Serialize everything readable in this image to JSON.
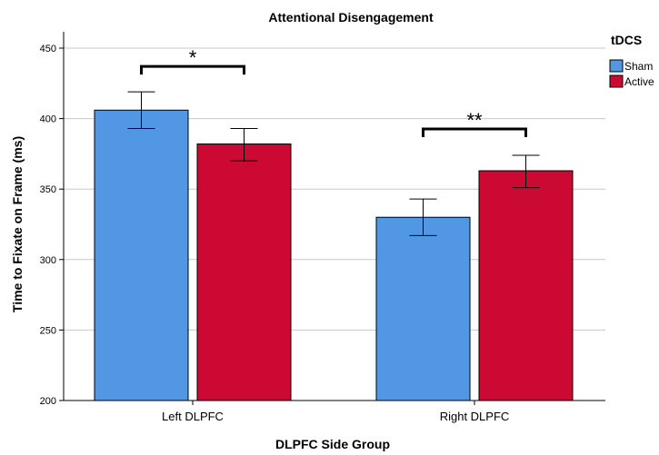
{
  "chart_data": {
    "type": "bar",
    "title": "Attentional Disengagement",
    "xlabel": "DLPFC Side Group",
    "ylabel": "Time to Fixate on Frame (ms)",
    "ylim": [
      200,
      460
    ],
    "yticks": [
      200,
      250,
      300,
      350,
      400,
      450
    ],
    "grid": true,
    "categories": [
      "Left DLPFC",
      "Right DLPFC"
    ],
    "legend": {
      "title": "tDCS",
      "position": "top-right"
    },
    "series": [
      {
        "name": "Sham",
        "color": "#5297e3",
        "values": [
          406,
          330
        ],
        "error_low": [
          393,
          317
        ],
        "error_high": [
          419,
          343
        ]
      },
      {
        "name": "Active",
        "color": "#cc0933",
        "values": [
          382,
          363
        ],
        "error_low": [
          370,
          351
        ],
        "error_high": [
          393,
          374
        ]
      }
    ],
    "annotations": [
      {
        "category": "Left DLPFC",
        "text": "*"
      },
      {
        "category": "Right DLPFC",
        "text": "**"
      }
    ]
  }
}
